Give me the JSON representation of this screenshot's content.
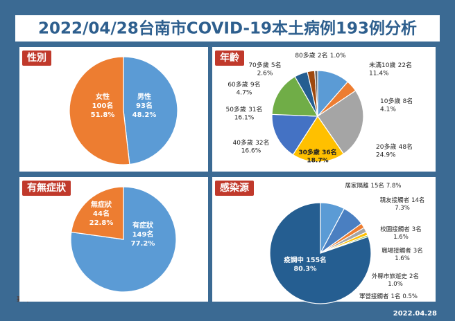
{
  "header": {
    "title": "2022/04/28台南市COVID-19本土病例193例分析"
  },
  "footer": {
    "date": "2022.04.28",
    "logo": "臺南"
  },
  "chart_data": [
    {
      "type": "pie",
      "title": "性別",
      "categories": [
        "男性",
        "女性"
      ],
      "values": [
        93,
        100
      ],
      "value_labels": [
        "93名",
        "100名"
      ],
      "percents": [
        48.2,
        51.8
      ],
      "percent_labels": [
        "48.2%",
        "51.8%"
      ],
      "colors": [
        "#5b9bd5",
        "#ed7d31"
      ]
    },
    {
      "type": "pie",
      "title": "年齡",
      "categories": [
        "未滿10歲",
        "10多歲",
        "20多歲",
        "30多歲",
        "40多歲",
        "50多歲",
        "60多歲",
        "70多歲",
        "80多歲"
      ],
      "values": [
        22,
        8,
        48,
        36,
        32,
        31,
        9,
        5,
        2
      ],
      "value_labels": [
        "22名",
        "8名",
        "48名",
        "36名",
        "32名",
        "31名",
        "9名",
        "5名",
        "2名"
      ],
      "percents": [
        11.4,
        4.1,
        24.9,
        18.7,
        16.6,
        16.1,
        4.7,
        2.6,
        1.0
      ],
      "percent_labels": [
        "11.4%",
        "4.1%",
        "24.9%",
        "18.7%",
        "16.6%",
        "16.1%",
        "4.7%",
        "2.6%",
        "1.0%"
      ],
      "colors": [
        "#5b9bd5",
        "#ed7d31",
        "#a5a5a5",
        "#ffc000",
        "#4472c4",
        "#70ad47",
        "#255e91",
        "#9e480e",
        "#636363"
      ]
    },
    {
      "type": "pie",
      "title": "有無症狀",
      "categories": [
        "有症狀",
        "無症狀"
      ],
      "values": [
        149,
        44
      ],
      "value_labels": [
        "149名",
        "44名"
      ],
      "percents": [
        77.2,
        22.8
      ],
      "percent_labels": [
        "77.2%",
        "22.8%"
      ],
      "colors": [
        "#5b9bd5",
        "#ed7d31"
      ]
    },
    {
      "type": "pie",
      "title": "感染源",
      "categories": [
        "居家隔離",
        "親友接觸者",
        "校園接觸者",
        "職場接觸者",
        "外縣市旅遊史",
        "軍營接觸者",
        "疫調中"
      ],
      "values": [
        15,
        14,
        3,
        3,
        2,
        1,
        155
      ],
      "value_labels": [
        "15名",
        "14名",
        "3名",
        "3名",
        "2名",
        "1名",
        "155名"
      ],
      "percents": [
        7.8,
        7.3,
        1.6,
        1.6,
        1.0,
        0.5,
        80.3
      ],
      "percent_labels": [
        "7.8%",
        "7.3%",
        "1.6%",
        "1.6%",
        "1.0%",
        "0.5%",
        "80.3%"
      ],
      "colors": [
        "#5b9bd5",
        "#4a7fc1",
        "#ed7d31",
        "#a5a5a5",
        "#ffc000",
        "#70ad47",
        "#255e91"
      ]
    }
  ]
}
